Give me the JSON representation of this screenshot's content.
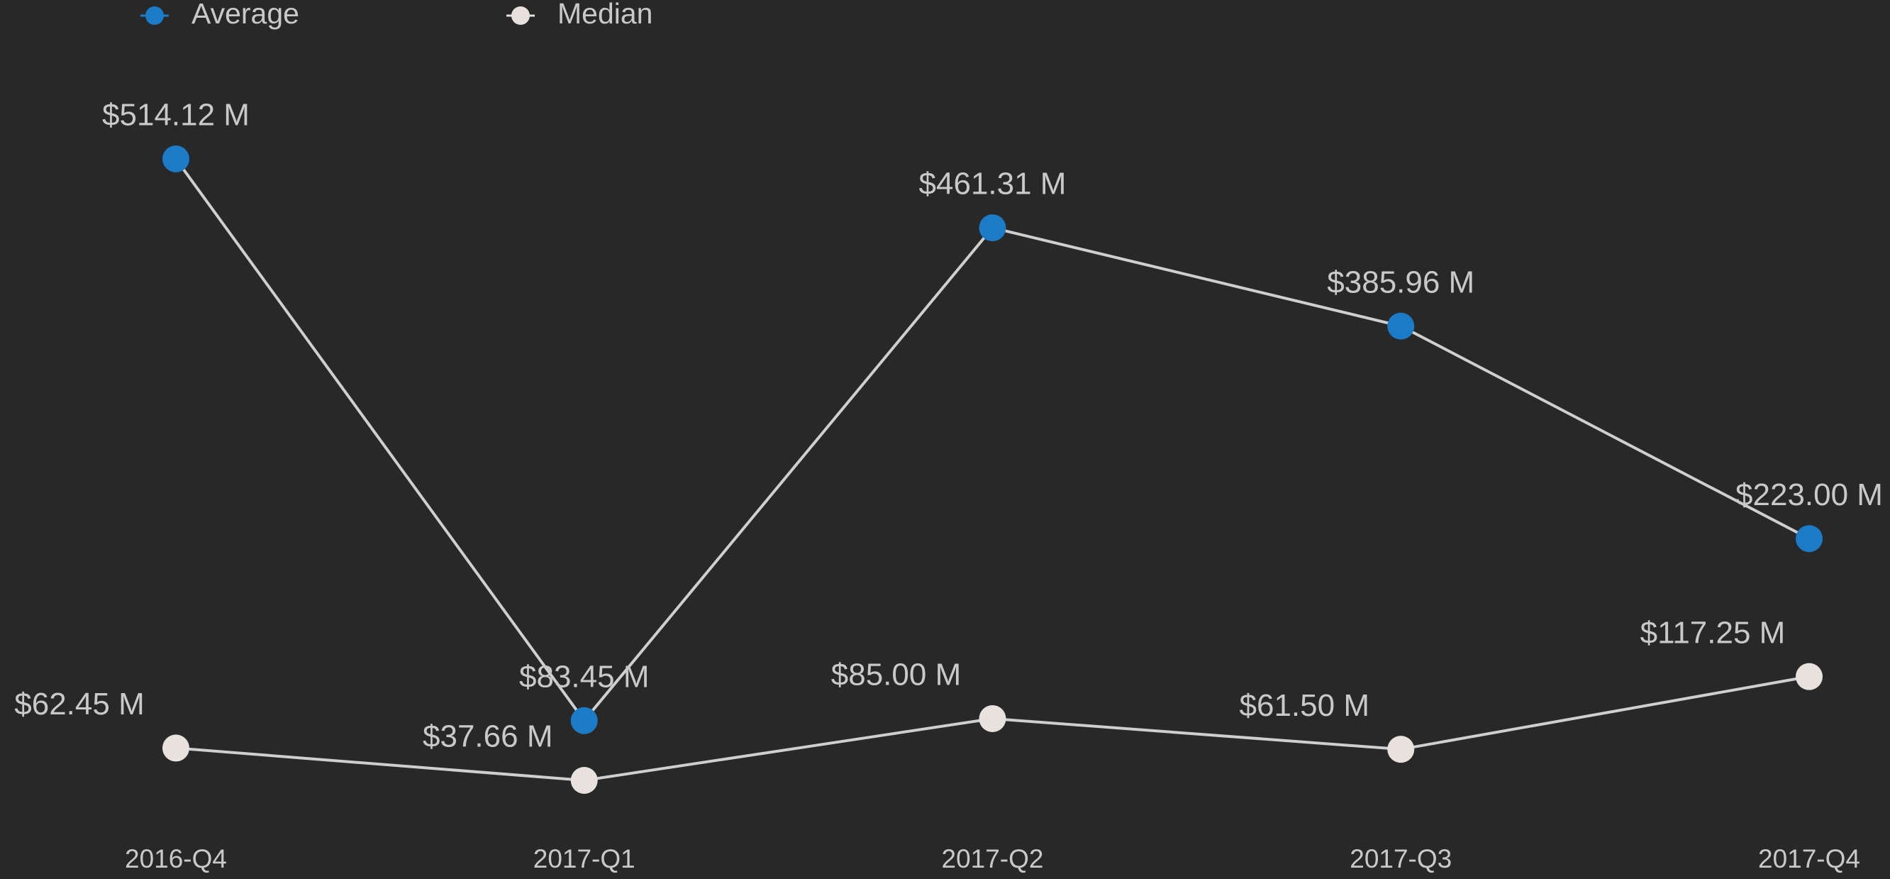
{
  "chart_data": {
    "type": "line",
    "categories": [
      "2016-Q4",
      "2017-Q1",
      "2017-Q2",
      "2017-Q3",
      "2017-Q4"
    ],
    "series": [
      {
        "name": "Average",
        "color": "#1b7bc6",
        "values": [
          514.12,
          83.45,
          461.31,
          385.96,
          223.0
        ],
        "value_labels": [
          "$514.12 M",
          "$83.45 M",
          "$461.31 M",
          "$385.96 M",
          "$223.00 M"
        ]
      },
      {
        "name": "Median",
        "color": "#e9e1dd",
        "values": [
          62.45,
          37.66,
          85.0,
          61.5,
          117.25
        ],
        "value_labels": [
          "$62.45 M",
          "$37.66 M",
          "$85.00 M",
          "$61.50 M",
          "$117.25 M"
        ]
      }
    ],
    "legend": "top-left"
  }
}
